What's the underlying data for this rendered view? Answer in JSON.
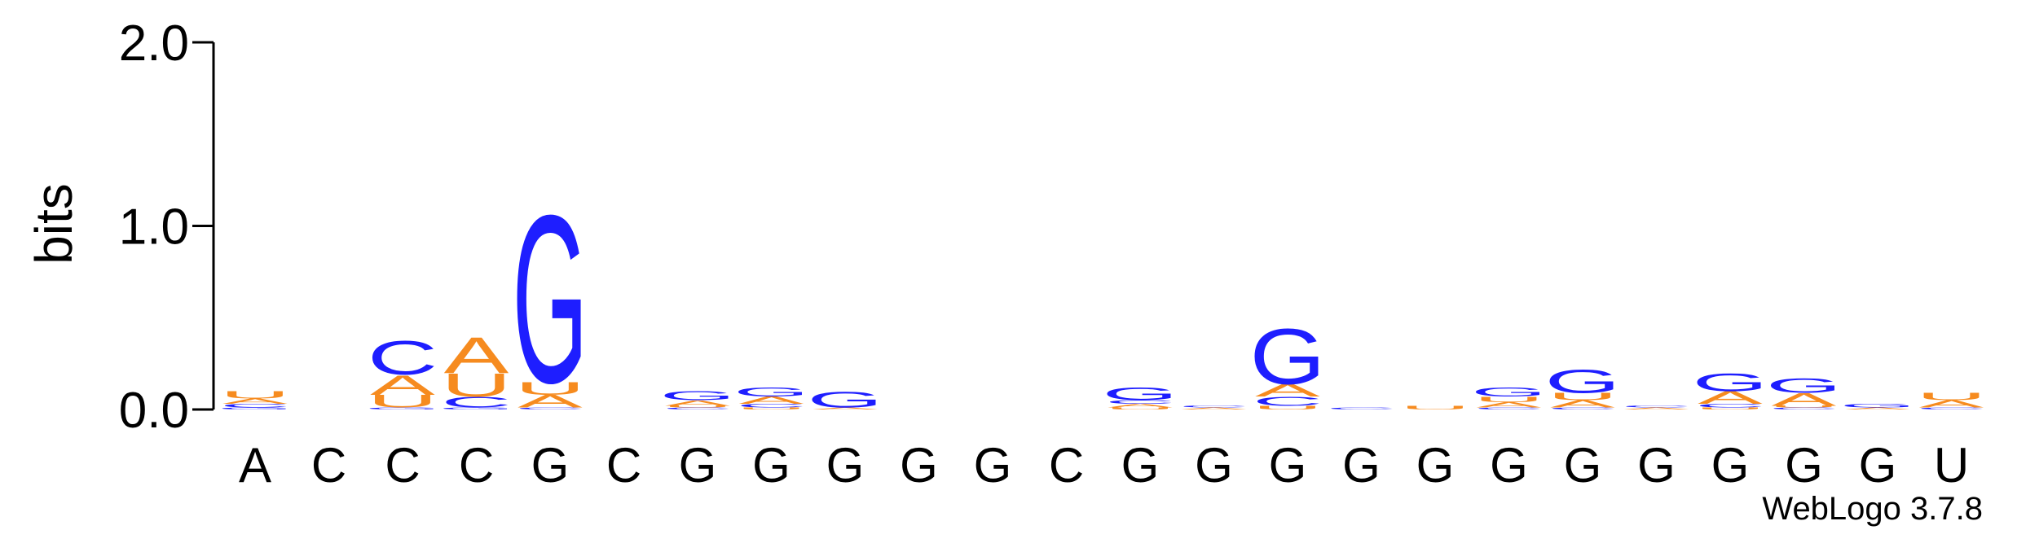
{
  "chart_data": {
    "type": "logo",
    "ylabel": "bits",
    "footer": "WebLogo 3.7.8",
    "categories": [
      "A",
      "C",
      "C",
      "C",
      "G",
      "C",
      "G",
      "G",
      "G",
      "G",
      "G",
      "C",
      "G",
      "G",
      "G",
      "G",
      "G",
      "G",
      "G",
      "G",
      "G",
      "G",
      "G",
      "U"
    ],
    "ylim": [
      0,
      2
    ],
    "yticks": [
      {
        "value": 0,
        "label": "0.0"
      },
      {
        "value": 1,
        "label": "1.0"
      },
      {
        "value": 2,
        "label": "2.0"
      }
    ],
    "series": [
      {
        "name": "A",
        "color": "#f68b1f",
        "values": [
          0.03,
          0,
          0.11,
          0.2,
          0.07,
          0,
          0.03,
          0.04,
          0.01,
          0,
          0,
          0,
          0.02,
          0.01,
          0.07,
          0,
          0,
          0.03,
          0.04,
          0.01,
          0.07,
          0.07,
          0.01,
          0.04
        ]
      },
      {
        "name": "C",
        "color": "#1e1eff",
        "values": [
          0.02,
          0,
          0.19,
          0.06,
          0.01,
          0,
          0.01,
          0.02,
          0,
          0,
          0,
          0,
          0.02,
          0.01,
          0.05,
          0.01,
          0,
          0.01,
          0.01,
          0.01,
          0.02,
          0.01,
          0,
          0.01
        ]
      },
      {
        "name": "G",
        "color": "#1e1eff",
        "values": [
          0.01,
          0,
          0.01,
          0.01,
          0.94,
          0,
          0.05,
          0.05,
          0.09,
          0,
          0,
          0,
          0.07,
          0,
          0.31,
          0,
          0,
          0.05,
          0.13,
          0,
          0.1,
          0.08,
          0.02,
          0
        ]
      },
      {
        "name": "U",
        "color": "#f68b1f",
        "values": [
          0.04,
          0,
          0.07,
          0.13,
          0.07,
          0,
          0.01,
          0.01,
          0,
          0,
          0,
          0,
          0.01,
          0,
          0.02,
          0,
          0.02,
          0.03,
          0.04,
          0,
          0.01,
          0.01,
          0,
          0.04
        ]
      }
    ]
  }
}
